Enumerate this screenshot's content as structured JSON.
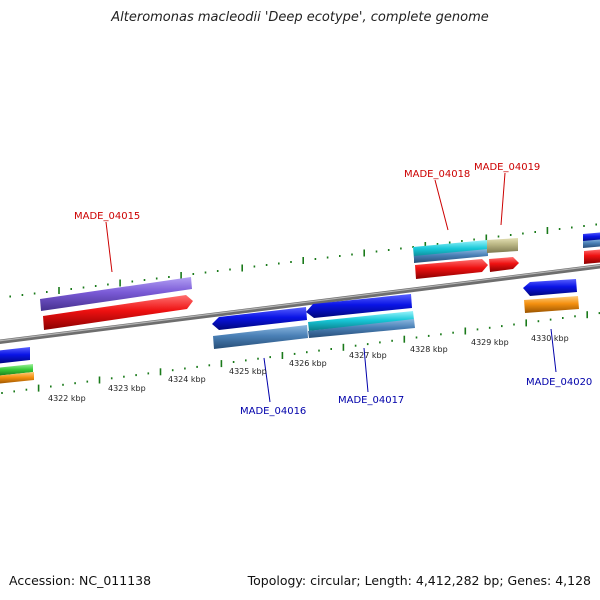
{
  "title": "Alteromonas macleodii 'Deep ecotype', complete genome",
  "footer": {
    "accession": "Accession: NC_011138",
    "summary": "Topology: circular; Length: 4,412,282 bp; Genes: 4,128"
  },
  "colors": {
    "backbone": "#8a8a8a",
    "ruler_ticks": "#1a7a1a",
    "label_top": "#cc0000",
    "label_bottom": "#0000aa",
    "blue": "#0a14e6",
    "steelblue": "#4a80b6",
    "red": "#ee1111",
    "purple": "#7a5ad6",
    "cyan": "#18c8d8",
    "khaki": "#b8b482",
    "green": "#3acc3a",
    "orange": "#f49010"
  },
  "ruler_labels": [
    "4322 kbp",
    "4323 kbp",
    "4324 kbp",
    "4325 kbp",
    "4326 kbp",
    "4327 kbp",
    "4328 kbp",
    "4329 kbp",
    "4330 kbp"
  ],
  "gene_labels": {
    "made_04015": "MADE_04015",
    "made_04016": "MADE_04016",
    "made_04017": "MADE_04017",
    "made_04018": "MADE_04018",
    "made_04019": "MADE_04019",
    "made_04020": "MADE_04020"
  }
}
